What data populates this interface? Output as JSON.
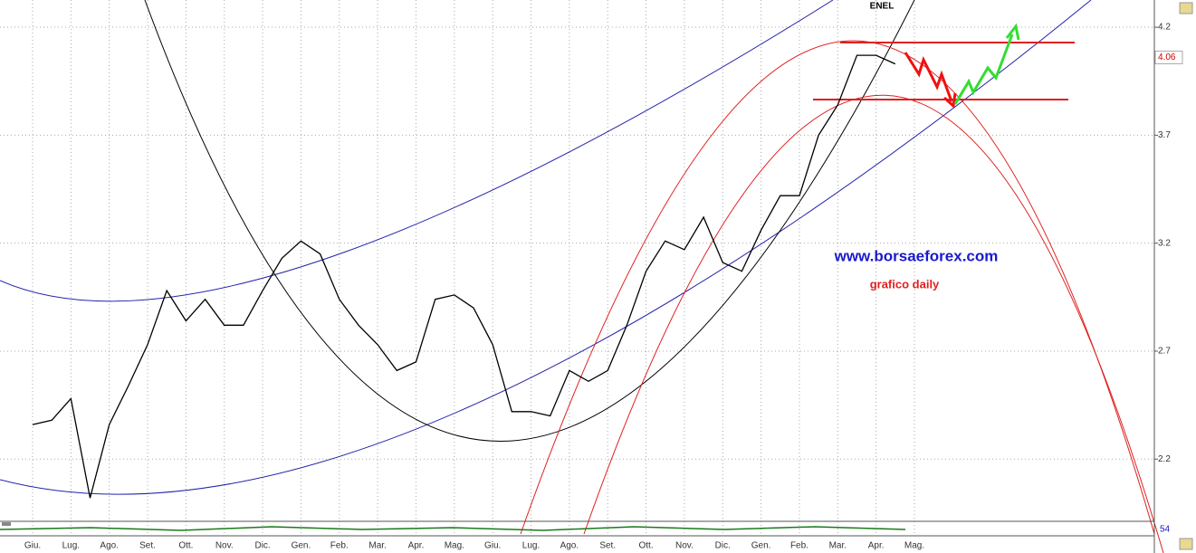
{
  "chart_data": {
    "type": "line",
    "title": "ENEL",
    "annotations": [
      "www.borsaeforex.com",
      "grafico daily"
    ],
    "categories": [
      "Giu.",
      null,
      "Lug.",
      null,
      "Ago.",
      null,
      "Set.",
      null,
      "Ott.",
      null,
      "Nov.",
      null,
      "Dic.",
      null,
      "Gen.",
      null,
      "Feb.",
      null,
      "Mar.",
      null,
      "Apr.",
      null,
      "Mag.",
      null,
      "Giu.",
      null,
      "Lug.",
      null,
      "Ago.",
      null,
      "Set.",
      null,
      "Ott.",
      null,
      "Nov.",
      null,
      "Dic.",
      null,
      "Gen.",
      null,
      "Feb.",
      null,
      "Mar.",
      null,
      "Apr.",
      null,
      "Mag."
    ],
    "values": [
      2.36,
      2.38,
      2.48,
      2.02,
      2.36,
      2.54,
      2.73,
      2.98,
      2.84,
      2.94,
      2.82,
      2.82,
      2.98,
      3.13,
      3.21,
      3.15,
      2.94,
      2.82,
      2.73,
      2.61,
      2.65,
      2.94,
      2.96,
      2.9,
      2.73,
      2.42,
      2.42,
      2.4,
      2.61,
      2.56,
      2.61,
      2.82,
      3.07,
      3.21,
      3.17,
      3.32,
      3.11,
      3.07,
      3.26,
      3.42,
      3.42,
      3.7,
      3.84,
      4.07,
      4.07,
      4.03,
      null
    ],
    "color": "#000000",
    "ylim": [
      1.916,
      4.326
    ],
    "yticks": [
      2.2,
      2.7,
      3.2,
      3.7,
      4.2
    ],
    "grid": true,
    "last_price": 4.06,
    "oscillator_value": 54
  }
}
